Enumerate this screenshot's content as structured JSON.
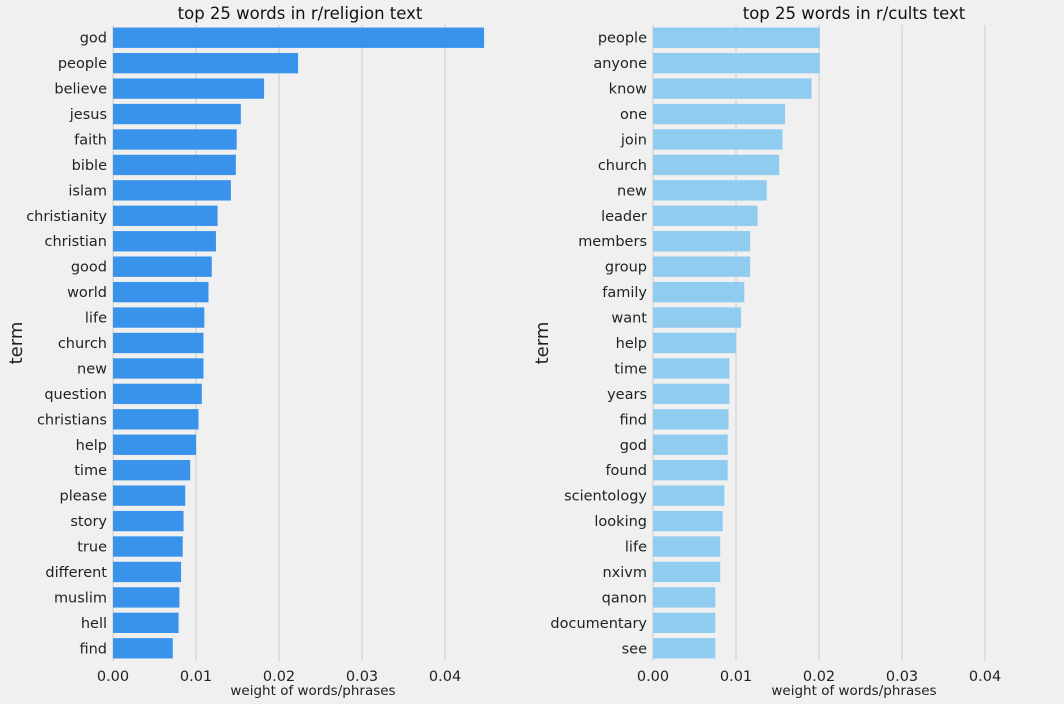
{
  "chart_data": [
    {
      "type": "bar",
      "orientation": "horizontal",
      "title": "top 25 words in r/religion text",
      "xlabel": "weight of words/phrases",
      "ylabel": "term",
      "xlim": [
        0,
        0.0465
      ],
      "xticks": [
        "0.00",
        "0.01",
        "0.02",
        "0.03",
        "0.04"
      ],
      "grid": "vertical",
      "color": "#3a93ea",
      "categories": [
        "god",
        "people",
        "believe",
        "jesus",
        "faith",
        "bible",
        "islam",
        "christianity",
        "christian",
        "good",
        "world",
        "life",
        "church",
        "new",
        "question",
        "christians",
        "help",
        "time",
        "please",
        "story",
        "true",
        "different",
        "muslim",
        "hell",
        "find"
      ],
      "values": [
        0.0447,
        0.0223,
        0.0182,
        0.0154,
        0.0149,
        0.0148,
        0.0142,
        0.0126,
        0.0124,
        0.0119,
        0.0115,
        0.011,
        0.0109,
        0.0109,
        0.0107,
        0.0103,
        0.01,
        0.0093,
        0.0087,
        0.0085,
        0.0084,
        0.0082,
        0.008,
        0.0079,
        0.0072
      ]
    },
    {
      "type": "bar",
      "orientation": "horizontal",
      "title": "top 25 words in r/cults text",
      "xlabel": "weight of words/phrases",
      "ylabel": "term",
      "xlim": [
        0,
        0.0465
      ],
      "xticks": [
        "0.00",
        "0.01",
        "0.02",
        "0.03",
        "0.04"
      ],
      "grid": "vertical",
      "color": "#90cbf0",
      "categories": [
        "people",
        "anyone",
        "know",
        "one",
        "join",
        "church",
        "new",
        "leader",
        "members",
        "group",
        "family",
        "want",
        "help",
        "time",
        "years",
        "find",
        "god",
        "found",
        "scientology",
        "looking",
        "life",
        "nxivm",
        "qanon",
        "documentary",
        "see"
      ],
      "values": [
        0.0201,
        0.0201,
        0.0191,
        0.0159,
        0.0156,
        0.0152,
        0.0137,
        0.0126,
        0.0117,
        0.0117,
        0.011,
        0.0106,
        0.01,
        0.0092,
        0.0092,
        0.0091,
        0.009,
        0.009,
        0.0086,
        0.0084,
        0.0081,
        0.0081,
        0.0075,
        0.0075,
        0.0075
      ]
    }
  ]
}
